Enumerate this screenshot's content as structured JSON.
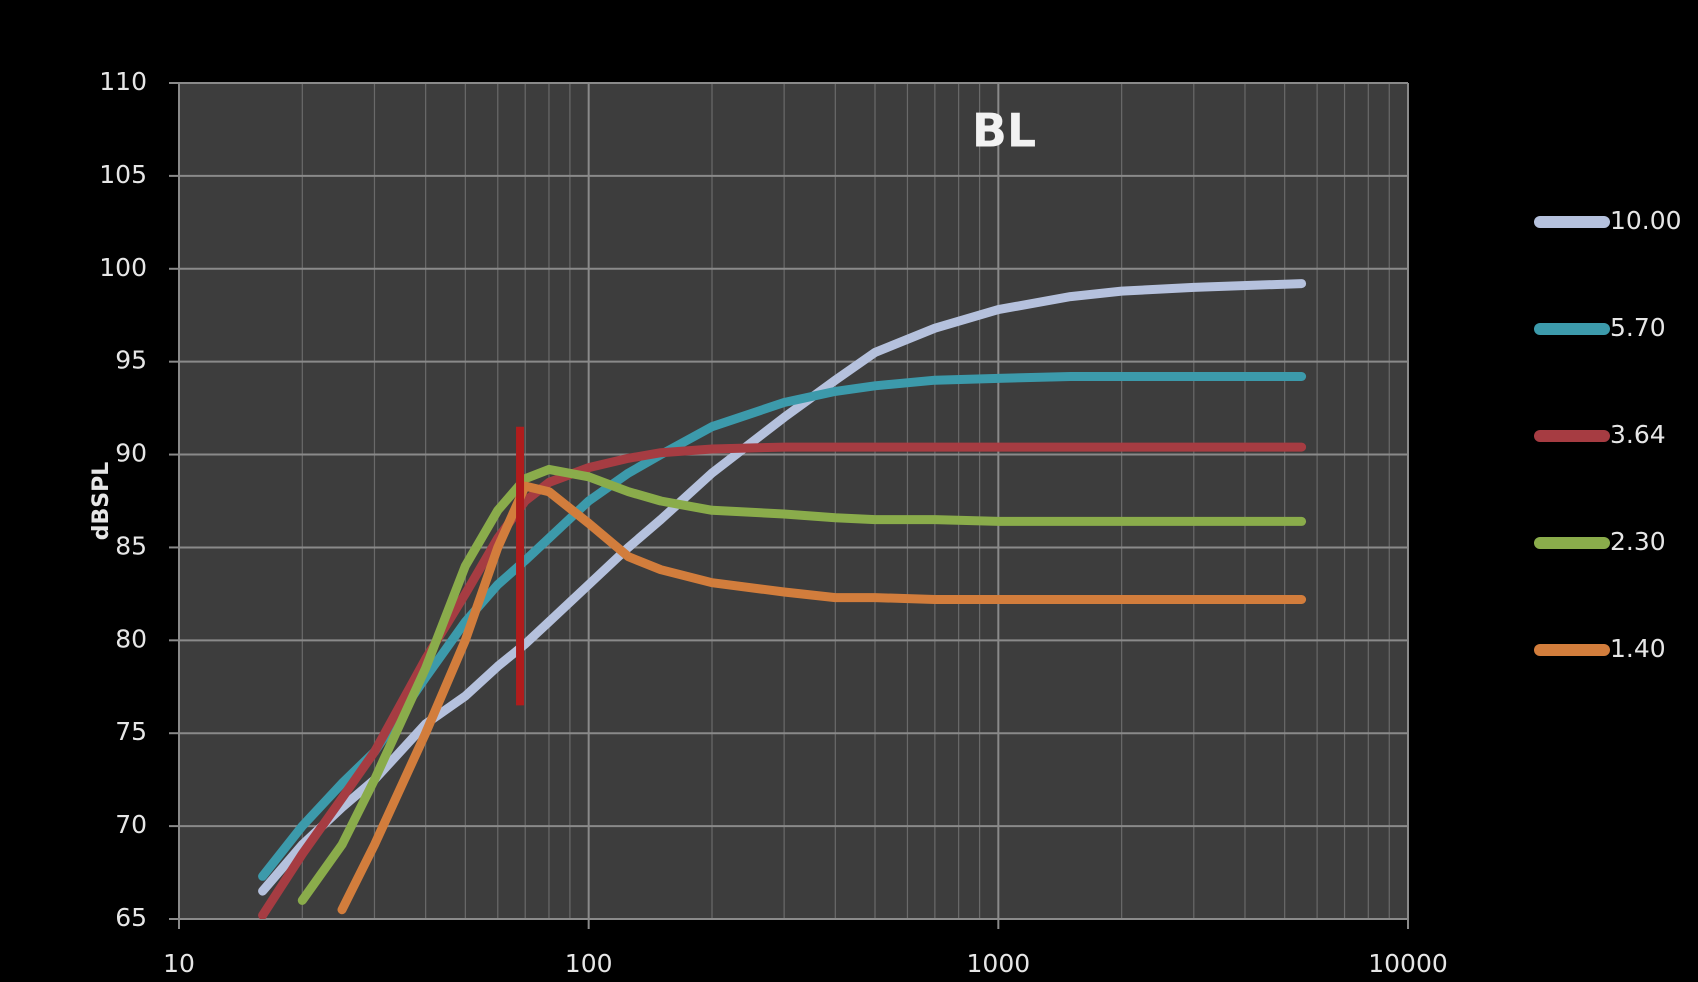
{
  "chart_data": {
    "type": "line",
    "title": "BL",
    "y_label": "dBSPL",
    "x": [
      16,
      20,
      25,
      30,
      40,
      50,
      60,
      70,
      80,
      100,
      125,
      150,
      200,
      300,
      400,
      500,
      700,
      1000,
      1500,
      2000,
      3000,
      5500
    ],
    "series": [
      {
        "name": "10.00",
        "color": "#b5c1dd",
        "values": [
          66.5,
          69,
          71,
          72.5,
          75.5,
          77,
          78.6,
          79.8,
          81,
          83,
          85,
          86.5,
          89,
          92,
          94,
          95.5,
          96.8,
          97.8,
          98.5,
          98.8,
          99,
          99.2
        ]
      },
      {
        "name": "5.70",
        "color": "#3c9aab",
        "values": [
          67.3,
          70,
          72.3,
          74,
          78,
          81,
          83,
          84.3,
          85.5,
          87.5,
          89,
          90,
          91.5,
          92.8,
          93.4,
          93.7,
          94,
          94.1,
          94.2,
          94.2,
          94.2,
          94.2
        ]
      },
      {
        "name": "3.64",
        "color": "#a63c42",
        "values": [
          65.2,
          68.5,
          71.5,
          74,
          79,
          82.5,
          85.5,
          87.5,
          88.5,
          89.3,
          89.8,
          90.1,
          90.3,
          90.4,
          90.4,
          90.4,
          90.4,
          90.4,
          90.4,
          90.4,
          90.4,
          90.4
        ]
      },
      {
        "name": "2.30",
        "color": "#8aac4b",
        "values": [
          null,
          66,
          69,
          72.5,
          78.5,
          84,
          87,
          88.7,
          89.2,
          88.8,
          88,
          87.5,
          87,
          86.8,
          86.6,
          86.5,
          86.5,
          86.4,
          86.4,
          86.4,
          86.4,
          86.4
        ]
      },
      {
        "name": "1.40",
        "color": "#d27d3c",
        "values": [
          null,
          null,
          65.5,
          69,
          75,
          80,
          85,
          88.3,
          88,
          86.3,
          84.5,
          83.8,
          83.1,
          82.6,
          82.3,
          82.3,
          82.2,
          82.2,
          82.2,
          82.2,
          82.2,
          82.2
        ]
      }
    ],
    "marker": {
      "x": 68,
      "y": [
        76.5,
        91.5
      ],
      "color": "#b01c1c"
    },
    "xlim": [
      10,
      10000
    ],
    "xticks": [
      10,
      100,
      1000,
      10000
    ],
    "xscale": "log",
    "ylim": [
      65,
      110
    ],
    "yticks": [
      65,
      70,
      75,
      80,
      85,
      90,
      95,
      100,
      105,
      110
    ],
    "grid": true,
    "minor_grid": true,
    "legend": "right"
  }
}
